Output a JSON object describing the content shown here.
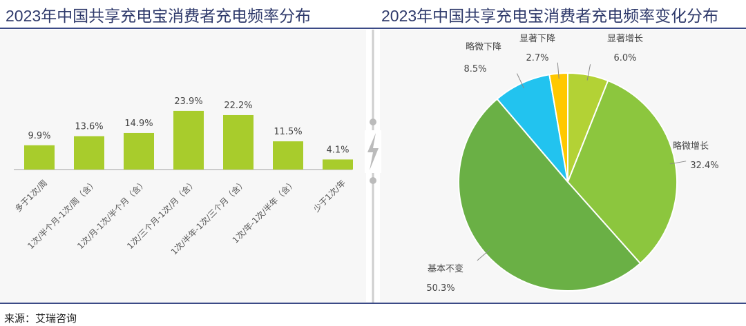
{
  "source": "来源：艾瑞咨询",
  "chart_data": [
    {
      "type": "bar",
      "title": "2023年中国共享充电宝消费者充电频率分布",
      "categories": [
        "多于1次/周",
        "1次/半个月-1次/周（含）",
        "1次/月-1次/半个月（含）",
        "1次/三个月-1次/月（含）",
        "1次/半年-1次/三个月（含）",
        "1次/年-1次/半年（含）",
        "少于1次/年"
      ],
      "values": [
        9.9,
        13.6,
        14.9,
        23.9,
        22.2,
        11.5,
        4.1
      ],
      "labels": [
        "9.9%",
        "13.6%",
        "14.9%",
        "23.9%",
        "22.2%",
        "11.5%",
        "4.1%"
      ],
      "color": "#a8cc2c",
      "grid": false
    },
    {
      "type": "pie",
      "title": "2023年中国共享充电宝消费者充电频率变化分布",
      "slices": [
        {
          "name": "显著增长",
          "value": 6.0,
          "label": "6.0%",
          "color": "#b3d235"
        },
        {
          "name": "略微增长",
          "value": 32.4,
          "label": "32.4%",
          "color": "#8cc63e"
        },
        {
          "name": "基本不变",
          "value": 50.3,
          "label": "50.3%",
          "color": "#6ab045"
        },
        {
          "name": "略微下降",
          "value": 8.5,
          "label": "8.5%",
          "color": "#22c3ef"
        },
        {
          "name": "显著下降",
          "value": 2.7,
          "label": "2.7%",
          "color": "#ffc800"
        }
      ]
    }
  ]
}
